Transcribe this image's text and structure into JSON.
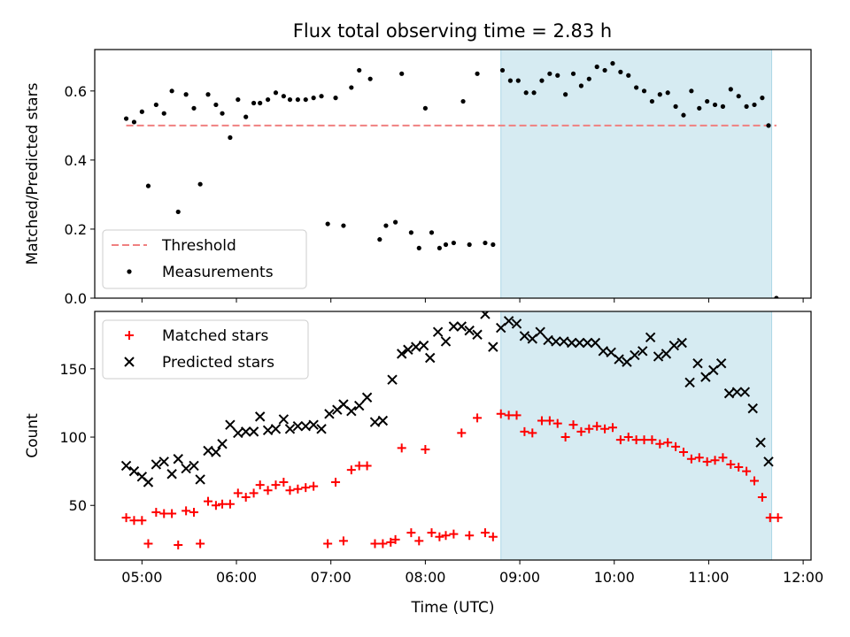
{
  "title": "Flux total observing time = 2.83 h",
  "colors": {
    "threshold": "#f08080",
    "measurement": "#000000",
    "matched": "#ff0000",
    "predicted": "#000000",
    "shade": "#add8e6"
  },
  "chart_data": [
    {
      "type": "scatter",
      "ylabel": "Matched/Predicted stars",
      "ylim": [
        0,
        0.72
      ],
      "yticks": [
        "0.0",
        "0.2",
        "0.4",
        "0.6"
      ],
      "xlim": [
        "04:30",
        "12:05"
      ],
      "shaded_span": [
        "08:48",
        "11:40"
      ],
      "legend": {
        "placement": "lower-left",
        "entries": [
          "Threshold",
          "Measurements"
        ]
      },
      "threshold": {
        "name": "Threshold",
        "y": 0.5,
        "x": [
          "04:50",
          "11:43"
        ]
      },
      "series": [
        {
          "name": "Measurements",
          "points": [
            [
              "04:50",
              0.52
            ],
            [
              "04:55",
              0.51
            ],
            [
              "05:00",
              0.54
            ],
            [
              "05:04",
              0.325
            ],
            [
              "05:09",
              0.56
            ],
            [
              "05:14",
              0.535
            ],
            [
              "05:19",
              0.6
            ],
            [
              "05:23",
              0.25
            ],
            [
              "05:28",
              0.59
            ],
            [
              "05:33",
              0.55
            ],
            [
              "05:37",
              0.33
            ],
            [
              "05:42",
              0.59
            ],
            [
              "05:47",
              0.56
            ],
            [
              "05:51",
              0.535
            ],
            [
              "05:56",
              0.465
            ],
            [
              "06:01",
              0.575
            ],
            [
              "06:06",
              0.525
            ],
            [
              "06:11",
              0.565
            ],
            [
              "06:15",
              0.565
            ],
            [
              "06:20",
              0.575
            ],
            [
              "06:25",
              0.595
            ],
            [
              "06:30",
              0.585
            ],
            [
              "06:34",
              0.575
            ],
            [
              "06:39",
              0.575
            ],
            [
              "06:44",
              0.575
            ],
            [
              "06:49",
              0.58
            ],
            [
              "06:54",
              0.585
            ],
            [
              "06:58",
              0.215
            ],
            [
              "07:03",
              0.58
            ],
            [
              "07:08",
              0.21
            ],
            [
              "07:13",
              0.61
            ],
            [
              "07:18",
              0.66
            ],
            [
              "07:25",
              0.635
            ],
            [
              "07:31",
              0.17
            ],
            [
              "07:35",
              0.21
            ],
            [
              "07:41",
              0.22
            ],
            [
              "07:45",
              0.65
            ],
            [
              "07:51",
              0.19
            ],
            [
              "07:56",
              0.145
            ],
            [
              "08:00",
              0.55
            ],
            [
              "08:04",
              0.19
            ],
            [
              "08:09",
              0.145
            ],
            [
              "08:13",
              0.155
            ],
            [
              "08:18",
              0.16
            ],
            [
              "08:24",
              0.57
            ],
            [
              "08:28",
              0.155
            ],
            [
              "08:33",
              0.65
            ],
            [
              "08:38",
              0.16
            ],
            [
              "08:43",
              0.155
            ],
            [
              "08:49",
              0.66
            ],
            [
              "08:54",
              0.63
            ],
            [
              "08:59",
              0.63
            ],
            [
              "09:04",
              0.595
            ],
            [
              "09:09",
              0.595
            ],
            [
              "09:14",
              0.63
            ],
            [
              "09:19",
              0.65
            ],
            [
              "09:24",
              0.645
            ],
            [
              "09:29",
              0.59
            ],
            [
              "09:34",
              0.65
            ],
            [
              "09:39",
              0.615
            ],
            [
              "09:44",
              0.635
            ],
            [
              "09:49",
              0.67
            ],
            [
              "09:54",
              0.66
            ],
            [
              "09:59",
              0.68
            ],
            [
              "10:04",
              0.655
            ],
            [
              "10:09",
              0.645
            ],
            [
              "10:14",
              0.61
            ],
            [
              "10:19",
              0.6
            ],
            [
              "10:24",
              0.57
            ],
            [
              "10:29",
              0.59
            ],
            [
              "10:34",
              0.595
            ],
            [
              "10:39",
              0.555
            ],
            [
              "10:44",
              0.53
            ],
            [
              "10:49",
              0.6
            ],
            [
              "10:54",
              0.55
            ],
            [
              "10:59",
              0.57
            ],
            [
              "11:04",
              0.56
            ],
            [
              "11:09",
              0.555
            ],
            [
              "11:14",
              0.605
            ],
            [
              "11:19",
              0.585
            ],
            [
              "11:24",
              0.555
            ],
            [
              "11:29",
              0.56
            ],
            [
              "11:34",
              0.58
            ],
            [
              "11:38",
              0.5
            ],
            [
              "11:43",
              0.0
            ]
          ]
        }
      ]
    },
    {
      "type": "scatter",
      "ylabel": "Count",
      "xlabel": "Time (UTC)",
      "ylim": [
        10,
        192
      ],
      "yticks": [
        "50",
        "100",
        "150"
      ],
      "xticks": [
        "05:00",
        "06:00",
        "07:00",
        "08:00",
        "09:00",
        "10:00",
        "11:00",
        "12:00"
      ],
      "xlim": [
        "04:30",
        "12:05"
      ],
      "shaded_span": [
        "08:48",
        "11:40"
      ],
      "legend": {
        "placement": "upper-left",
        "entries": [
          "Matched stars",
          "Predicted stars"
        ]
      },
      "series": [
        {
          "name": "Matched stars",
          "marker": "plus",
          "points": [
            [
              "04:50",
              41
            ],
            [
              "04:55",
              39
            ],
            [
              "05:00",
              39
            ],
            [
              "05:04",
              22
            ],
            [
              "05:09",
              45
            ],
            [
              "05:14",
              44
            ],
            [
              "05:19",
              44
            ],
            [
              "05:23",
              21
            ],
            [
              "05:28",
              46
            ],
            [
              "05:33",
              45
            ],
            [
              "05:37",
              22
            ],
            [
              "05:42",
              53
            ],
            [
              "05:47",
              50
            ],
            [
              "05:51",
              51
            ],
            [
              "05:56",
              51
            ],
            [
              "06:01",
              59
            ],
            [
              "06:06",
              56
            ],
            [
              "06:11",
              59
            ],
            [
              "06:15",
              65
            ],
            [
              "06:20",
              61
            ],
            [
              "06:25",
              65
            ],
            [
              "06:30",
              67
            ],
            [
              "06:34",
              61
            ],
            [
              "06:39",
              62
            ],
            [
              "06:44",
              63
            ],
            [
              "06:49",
              64
            ],
            [
              "06:58",
              22
            ],
            [
              "07:03",
              67
            ],
            [
              "07:08",
              24
            ],
            [
              "07:13",
              76
            ],
            [
              "07:18",
              79
            ],
            [
              "07:23",
              79
            ],
            [
              "07:28",
              22
            ],
            [
              "07:33",
              22
            ],
            [
              "07:38",
              23
            ],
            [
              "07:41",
              25
            ],
            [
              "07:45",
              92
            ],
            [
              "07:51",
              30
            ],
            [
              "07:56",
              24
            ],
            [
              "08:00",
              91
            ],
            [
              "08:04",
              30
            ],
            [
              "08:09",
              27
            ],
            [
              "08:13",
              28
            ],
            [
              "08:18",
              29
            ],
            [
              "08:23",
              103
            ],
            [
              "08:28",
              28
            ],
            [
              "08:33",
              114
            ],
            [
              "08:38",
              30
            ],
            [
              "08:43",
              27
            ],
            [
              "08:48",
              117
            ],
            [
              "08:53",
              116
            ],
            [
              "08:58",
              116
            ],
            [
              "09:03",
              104
            ],
            [
              "09:08",
              103
            ],
            [
              "09:14",
              112
            ],
            [
              "09:19",
              112
            ],
            [
              "09:24",
              110
            ],
            [
              "09:29",
              100
            ],
            [
              "09:34",
              109
            ],
            [
              "09:39",
              104
            ],
            [
              "09:44",
              106
            ],
            [
              "09:49",
              108
            ],
            [
              "09:54",
              106
            ],
            [
              "09:59",
              107
            ],
            [
              "10:04",
              98
            ],
            [
              "10:09",
              100
            ],
            [
              "10:14",
              98
            ],
            [
              "10:19",
              98
            ],
            [
              "10:24",
              98
            ],
            [
              "10:29",
              95
            ],
            [
              "10:34",
              96
            ],
            [
              "10:39",
              93
            ],
            [
              "10:44",
              89
            ],
            [
              "10:49",
              84
            ],
            [
              "10:54",
              85
            ],
            [
              "10:59",
              82
            ],
            [
              "11:04",
              83
            ],
            [
              "11:09",
              85
            ],
            [
              "11:14",
              80
            ],
            [
              "11:19",
              78
            ],
            [
              "11:24",
              75
            ],
            [
              "11:29",
              68
            ],
            [
              "11:34",
              56
            ],
            [
              "11:39",
              41
            ],
            [
              "11:44",
              41
            ]
          ]
        },
        {
          "name": "Predicted stars",
          "marker": "x",
          "points": [
            [
              "04:50",
              79
            ],
            [
              "04:55",
              75
            ],
            [
              "05:00",
              71
            ],
            [
              "05:04",
              67
            ],
            [
              "05:09",
              80
            ],
            [
              "05:14",
              82
            ],
            [
              "05:19",
              73
            ],
            [
              "05:23",
              84
            ],
            [
              "05:28",
              77
            ],
            [
              "05:33",
              79
            ],
            [
              "05:37",
              69
            ],
            [
              "05:42",
              90
            ],
            [
              "05:47",
              89
            ],
            [
              "05:51",
              95
            ],
            [
              "05:56",
              109
            ],
            [
              "06:01",
              103
            ],
            [
              "06:06",
              104
            ],
            [
              "06:11",
              104
            ],
            [
              "06:15",
              115
            ],
            [
              "06:20",
              105
            ],
            [
              "06:25",
              106
            ],
            [
              "06:30",
              113
            ],
            [
              "06:34",
              106
            ],
            [
              "06:39",
              108
            ],
            [
              "06:44",
              108
            ],
            [
              "06:49",
              109
            ],
            [
              "06:54",
              106
            ],
            [
              "06:59",
              117
            ],
            [
              "07:04",
              120
            ],
            [
              "07:08",
              124
            ],
            [
              "07:13",
              119
            ],
            [
              "07:18",
              123
            ],
            [
              "07:23",
              129
            ],
            [
              "07:28",
              111
            ],
            [
              "07:33",
              112
            ],
            [
              "07:39",
              142
            ],
            [
              "07:45",
              161
            ],
            [
              "07:49",
              164
            ],
            [
              "07:54",
              166
            ],
            [
              "07:59",
              167
            ],
            [
              "08:03",
              158
            ],
            [
              "08:08",
              177
            ],
            [
              "08:13",
              170
            ],
            [
              "08:18",
              181
            ],
            [
              "08:23",
              181
            ],
            [
              "08:28",
              178
            ],
            [
              "08:33",
              175
            ],
            [
              "08:38",
              190
            ],
            [
              "08:43",
              166
            ],
            [
              "08:48",
              180
            ],
            [
              "08:53",
              185
            ],
            [
              "08:58",
              183
            ],
            [
              "09:03",
              174
            ],
            [
              "09:08",
              172
            ],
            [
              "09:13",
              177
            ],
            [
              "09:18",
              171
            ],
            [
              "09:23",
              170
            ],
            [
              "09:28",
              170
            ],
            [
              "09:33",
              169
            ],
            [
              "09:38",
              169
            ],
            [
              "09:43",
              169
            ],
            [
              "09:48",
              169
            ],
            [
              "09:53",
              163
            ],
            [
              "09:58",
              162
            ],
            [
              "10:03",
              157
            ],
            [
              "10:08",
              155
            ],
            [
              "10:13",
              160
            ],
            [
              "10:18",
              163
            ],
            [
              "10:23",
              173
            ],
            [
              "10:28",
              159
            ],
            [
              "10:33",
              161
            ],
            [
              "10:38",
              167
            ],
            [
              "10:43",
              169
            ],
            [
              "10:48",
              140
            ],
            [
              "10:53",
              154
            ],
            [
              "10:58",
              144
            ],
            [
              "11:03",
              149
            ],
            [
              "11:08",
              154
            ],
            [
              "11:13",
              132
            ],
            [
              "11:18",
              133
            ],
            [
              "11:23",
              133
            ],
            [
              "11:28",
              121
            ],
            [
              "11:33",
              96
            ],
            [
              "11:38",
              82
            ]
          ]
        }
      ]
    }
  ]
}
